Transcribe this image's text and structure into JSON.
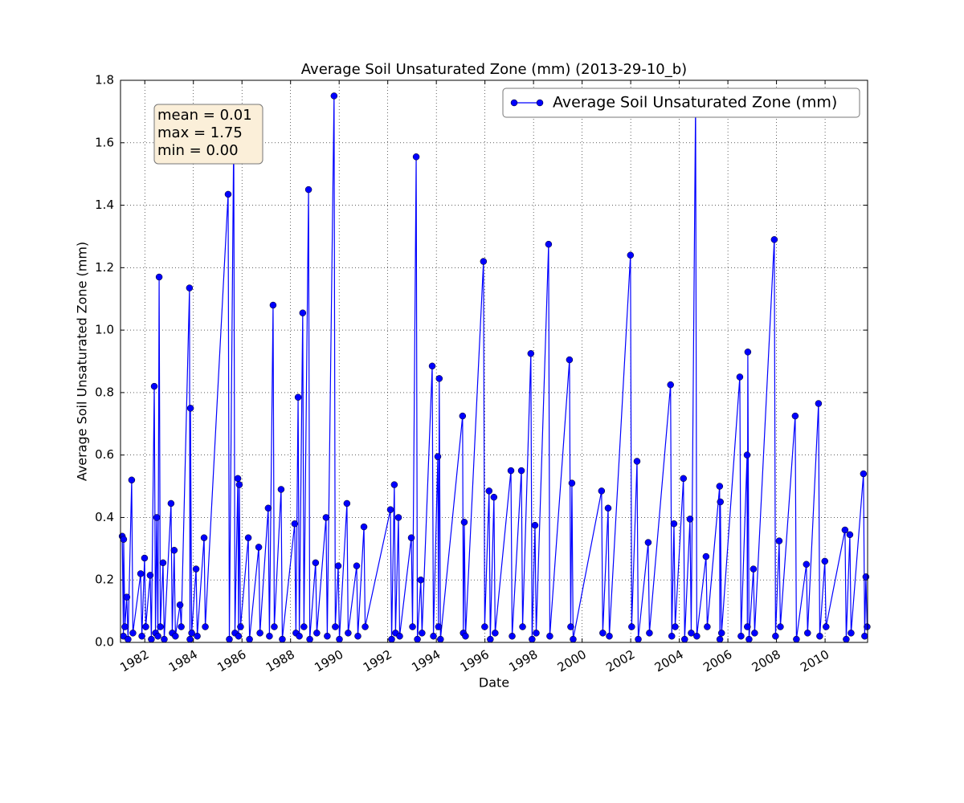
{
  "chart_data": {
    "type": "line",
    "title": "Average Soil Unsaturated Zone (mm) (2013-29-10_b)",
    "xlabel": "Date",
    "ylabel": "Average Soil Unsaturated Zone (mm)",
    "annotation": [
      "mean = 0.01",
      "max = 1.75",
      "min = 0.00"
    ],
    "legend": "upper right",
    "grid": true,
    "xlim": [
      1981,
      2011.75
    ],
    "ylim": [
      0,
      1.8
    ],
    "xticks": [
      1982,
      1984,
      1986,
      1988,
      1990,
      1992,
      1994,
      1996,
      1998,
      2000,
      2002,
      2004,
      2006,
      2008,
      2010
    ],
    "yticks": [
      {
        "value": 0,
        "label": "0.0"
      },
      0.2,
      0.4,
      0.6,
      0.8,
      {
        "value": 1,
        "label": "1.0"
      },
      1.2,
      1.4,
      1.6,
      1.8
    ],
    "series": [
      {
        "name": "Average Soil Unsaturated Zone (mm)",
        "color": "#0000ff",
        "x": [
          1981.07,
          1981.12,
          1981.13,
          1981.18,
          1981.26,
          1981.31,
          1981.46,
          1981.51,
          1981.83,
          1981.88,
          1981.99,
          1982.04,
          1982.22,
          1982.27,
          1982.39,
          1982.44,
          1982.49,
          1982.54,
          1982.59,
          1982.64,
          1982.75,
          1982.8,
          1983.08,
          1983.13,
          1983.21,
          1983.26,
          1983.45,
          1983.5,
          1983.84,
          1983.86,
          1983.88,
          1983.93,
          1984.11,
          1984.16,
          1984.44,
          1984.49,
          1985.43,
          1985.48,
          1985.66,
          1985.71,
          1985.83,
          1985.86,
          1985.89,
          1985.94,
          1986.26,
          1986.31,
          1986.69,
          1986.74,
          1987.08,
          1987.13,
          1987.28,
          1987.33,
          1987.61,
          1987.66,
          1988.17,
          1988.22,
          1988.31,
          1988.36,
          1988.5,
          1988.55,
          1988.74,
          1988.79,
          1989.03,
          1989.08,
          1989.46,
          1989.51,
          1989.79,
          1989.84,
          1989.96,
          1990.01,
          1990.32,
          1990.37,
          1990.72,
          1990.77,
          1991.02,
          1991.07,
          1992.11,
          1992.16,
          1992.27,
          1992.32,
          1992.44,
          1992.49,
          1992.97,
          1993.02,
          1993.17,
          1993.22,
          1993.36,
          1993.41,
          1993.83,
          1993.88,
          1994.06,
          1994.09,
          1994.12,
          1994.17,
          1995.08,
          1995.11,
          1995.15,
          1995.2,
          1995.94,
          1995.99,
          1996.17,
          1996.22,
          1996.37,
          1996.42,
          1997.07,
          1997.12,
          1997.5,
          1997.55,
          1997.89,
          1997.94,
          1998.06,
          1998.11,
          1998.62,
          1998.67,
          1999.48,
          1999.53,
          1999.58,
          1999.63,
          2000.8,
          2000.85,
          2001.07,
          2001.12,
          2001.99,
          2002.04,
          2002.26,
          2002.31,
          2002.72,
          2002.77,
          2003.64,
          2003.69,
          2003.78,
          2003.83,
          2004.17,
          2004.22,
          2004.44,
          2004.49,
          2004.67,
          2004.72,
          2005.1,
          2005.15,
          2005.66,
          2005.67,
          2005.69,
          2005.74,
          2006.49,
          2006.54,
          2006.79,
          2006.8,
          2006.82,
          2006.87,
          2007.05,
          2007.1,
          2007.91,
          2007.96,
          2008.11,
          2008.16,
          2008.77,
          2008.82,
          2009.23,
          2009.28,
          2009.73,
          2009.78,
          2009.99,
          2010.04,
          2010.82,
          2010.87,
          2011.02,
          2011.07,
          2011.58,
          2011.63,
          2011.68,
          2011.73
        ],
        "values": [
          0.34,
          0.02,
          0.33,
          0.05,
          0.145,
          0.01,
          0.52,
          0.03,
          0.22,
          0.02,
          0.27,
          0.05,
          0.215,
          0.01,
          0.82,
          0.03,
          0.4,
          0.02,
          1.17,
          0.05,
          0.255,
          0.01,
          0.445,
          0.03,
          0.295,
          0.02,
          0.12,
          0.05,
          1.135,
          0.01,
          0.75,
          0.03,
          0.235,
          0.02,
          0.335,
          0.05,
          1.435,
          0.01,
          1.63,
          0.03,
          0.525,
          0.02,
          0.505,
          0.05,
          0.335,
          0.01,
          0.305,
          0.03,
          0.43,
          0.02,
          1.08,
          0.05,
          0.49,
          0.01,
          0.38,
          0.03,
          0.785,
          0.02,
          1.055,
          0.05,
          1.45,
          0.01,
          0.255,
          0.03,
          0.4,
          0.02,
          1.75,
          0.05,
          0.245,
          0.01,
          0.445,
          0.03,
          0.245,
          0.02,
          0.37,
          0.05,
          0.425,
          0.01,
          0.505,
          0.03,
          0.4,
          0.02,
          0.335,
          0.05,
          1.555,
          0.01,
          0.2,
          0.03,
          0.885,
          0.02,
          0.595,
          0.05,
          0.845,
          0.01,
          0.725,
          0.03,
          0.385,
          0.02,
          1.22,
          0.05,
          0.485,
          0.01,
          0.465,
          0.03,
          0.55,
          0.02,
          0.55,
          0.05,
          0.925,
          0.01,
          0.375,
          0.03,
          1.275,
          0.02,
          0.905,
          0.05,
          0.51,
          0.01,
          0.485,
          0.03,
          0.43,
          0.02,
          1.24,
          0.05,
          0.58,
          0.01,
          0.32,
          0.03,
          0.825,
          0.02,
          0.38,
          0.05,
          0.525,
          0.01,
          0.395,
          0.03,
          1.735,
          0.02,
          0.275,
          0.05,
          0.5,
          0.01,
          0.45,
          0.03,
          0.85,
          0.02,
          0.6,
          0.05,
          0.93,
          0.01,
          0.235,
          0.03,
          1.29,
          0.02,
          0.325,
          0.05,
          0.725,
          0.01,
          0.25,
          0.03,
          0.765,
          0.02,
          0.26,
          0.05,
          0.36,
          0.01,
          0.345,
          0.03,
          0.54,
          0.02,
          0.21,
          0.05
        ]
      }
    ]
  }
}
